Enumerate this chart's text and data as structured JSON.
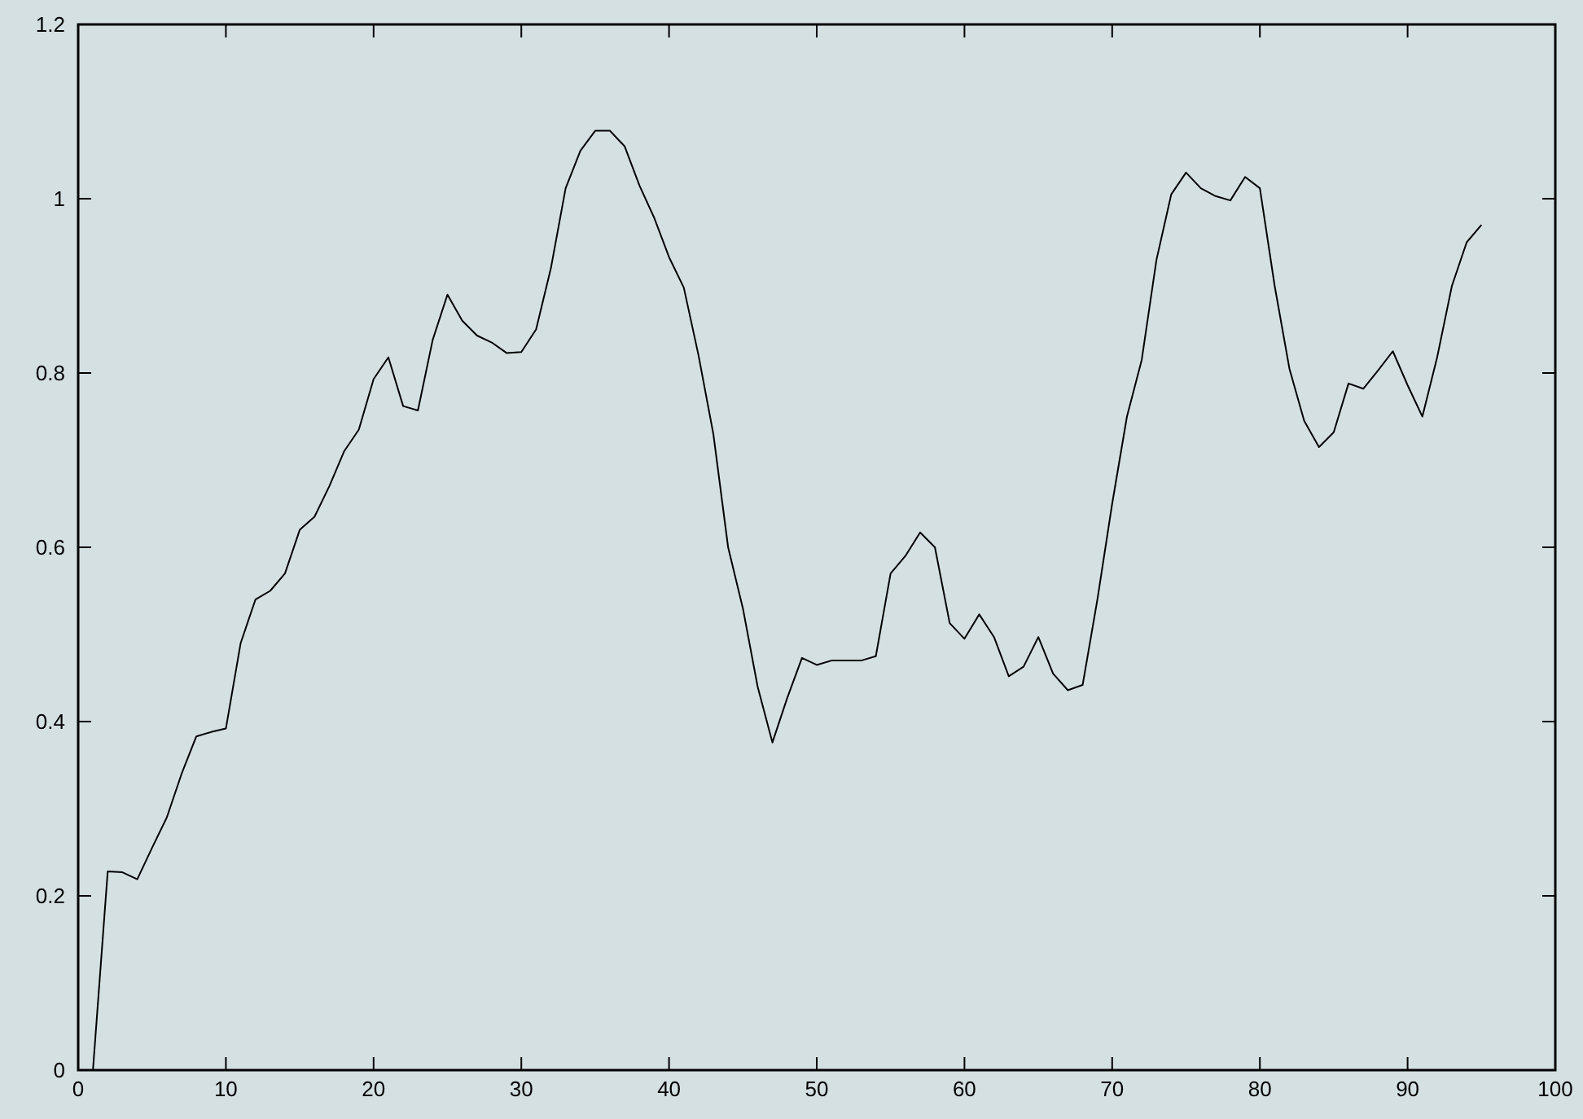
{
  "chart_data": {
    "type": "line",
    "x": [
      1,
      2,
      3,
      4,
      5,
      6,
      7,
      8,
      9,
      10,
      11,
      12,
      13,
      14,
      15,
      16,
      17,
      18,
      19,
      20,
      21,
      22,
      23,
      24,
      25,
      26,
      27,
      28,
      29,
      30,
      31,
      32,
      33,
      34,
      35,
      36,
      37,
      38,
      39,
      40,
      41,
      42,
      43,
      44,
      45,
      46,
      47,
      48,
      49,
      50,
      51,
      52,
      53,
      54,
      55,
      56,
      57,
      58,
      59,
      60,
      61,
      62,
      63,
      64,
      65,
      66,
      67,
      68,
      69,
      70,
      71,
      72,
      73,
      74,
      75,
      76,
      77,
      78,
      79,
      80,
      81,
      82,
      83,
      84,
      85,
      86,
      87,
      88,
      89,
      90,
      91,
      92,
      93,
      94,
      95
    ],
    "series": [
      {
        "color": "#000000",
        "values": [
          0,
          0.228,
          0.227,
          0.219,
          0.255,
          0.29,
          0.34,
          0.383,
          0.388,
          0.392,
          0.49,
          0.54,
          0.55,
          0.57,
          0.62,
          0.635,
          0.67,
          0.71,
          0.735,
          0.793,
          0.818,
          0.762,
          0.757,
          0.838,
          0.89,
          0.86,
          0.843,
          0.835,
          0.823,
          0.824,
          0.85,
          0.92,
          1.012,
          1.055,
          1.078,
          1.078,
          1.06,
          1.015,
          0.978,
          0.933,
          0.898,
          0.82,
          0.73,
          0.6,
          0.53,
          0.44,
          0.376,
          0.427,
          0.473,
          0.465,
          0.47,
          0.47,
          0.47,
          0.475,
          0.57,
          0.59,
          0.617,
          0.6,
          0.513,
          0.495,
          0.523,
          0.497,
          0.452,
          0.463,
          0.497,
          0.455,
          0.436,
          0.442,
          0.54,
          0.65,
          0.75,
          0.815,
          0.93,
          1.005,
          1.03,
          1.012,
          1.003,
          0.998,
          1.025,
          1.012,
          0.9,
          0.805,
          0.745,
          0.715,
          0.732,
          0.788,
          0.782,
          0.803,
          0.825,
          0.786,
          0.75,
          0.818,
          0.9,
          0.95,
          0.97
        ]
      }
    ],
    "xlim": [
      0,
      100
    ],
    "xticks": [
      0,
      10,
      20,
      30,
      40,
      50,
      60,
      70,
      80,
      90,
      100
    ],
    "ylim": [
      0,
      1.2
    ],
    "yticks": [
      0,
      0.2,
      0.4,
      0.6,
      0.8,
      1,
      1.2
    ],
    "grid": false,
    "marker": "none",
    "line_style": "solid"
  }
}
